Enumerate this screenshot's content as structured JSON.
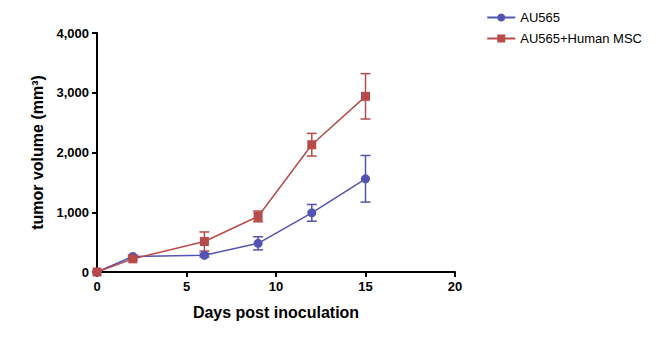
{
  "chart_data": {
    "type": "line",
    "xlabel": "Days post inoculation",
    "ylabel": "tumor volume (mm³)",
    "xlim": [
      0,
      20
    ],
    "xticks": [
      0,
      5,
      10,
      15,
      20
    ],
    "ylim": [
      0,
      4000
    ],
    "yticks": [
      0,
      1000,
      2000,
      3000,
      4000
    ],
    "grid": false,
    "legend": "top-right",
    "series": [
      {
        "name": "AU565",
        "color": "#5353b3",
        "marker": "circle",
        "line_style": "solid",
        "x": [
          0,
          2,
          6,
          9,
          12,
          15
        ],
        "values": [
          0,
          260,
          280,
          480,
          990,
          1560
        ],
        "errors": [
          0,
          20,
          30,
          110,
          140,
          390
        ]
      },
      {
        "name": "AU565+Human MSC",
        "color": "#b94a4a",
        "marker": "square",
        "line_style": "solid",
        "x": [
          0,
          2,
          6,
          9,
          12,
          15
        ],
        "values": [
          0,
          220,
          510,
          930,
          2130,
          2940
        ],
        "errors": [
          0,
          20,
          160,
          90,
          190,
          380
        ]
      }
    ]
  }
}
